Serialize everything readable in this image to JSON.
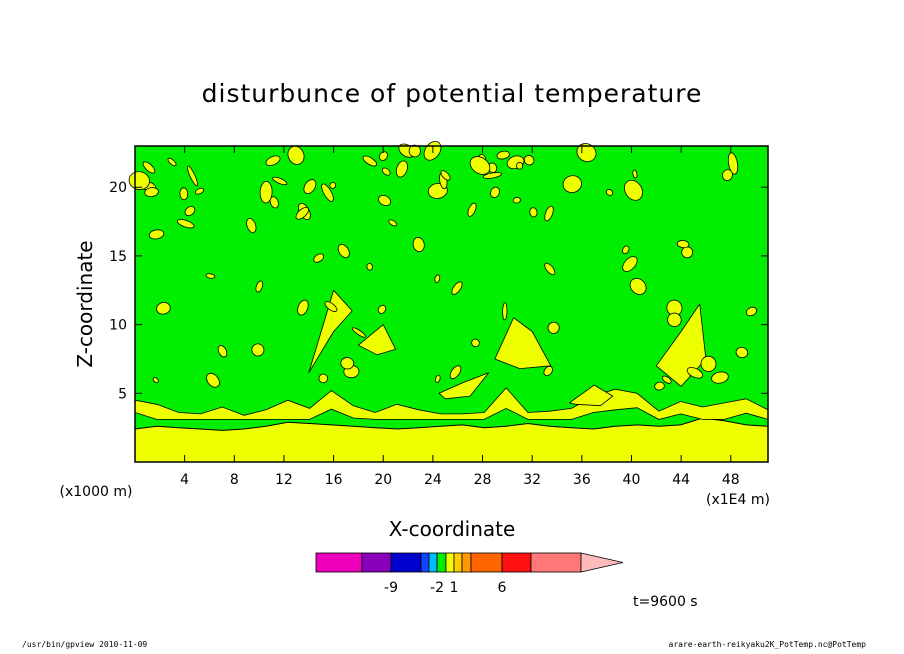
{
  "chart_data": {
    "type": "heatmap",
    "title": "disturbunce of potential temperature",
    "xlabel": "X-coordinate",
    "ylabel": "Z-coordinate",
    "x_unit": "(x1E4 m)",
    "y_unit": "(x1000 m)",
    "xlim": [
      0,
      51
    ],
    "ylim": [
      0,
      23
    ],
    "x_ticks": [
      "4",
      "8",
      "12",
      "16",
      "20",
      "24",
      "28",
      "32",
      "36",
      "40",
      "44",
      "48"
    ],
    "y_ticks": [
      "5",
      "10",
      "15",
      "20"
    ],
    "fill_colors": {
      "background": "#00ee00",
      "anomaly": "#eeff00"
    },
    "surface_layer_top": [
      2.4,
      2.6,
      2.5,
      2.4,
      2.3,
      2.4,
      2.6,
      2.9,
      2.8,
      2.7,
      2.6,
      2.5,
      2.4,
      2.5,
      2.6,
      2.7,
      2.5,
      2.6,
      2.8,
      2.6,
      2.5,
      2.4,
      2.6,
      2.7,
      2.6,
      2.7,
      3.2,
      3.0,
      2.7,
      2.6
    ],
    "lower_cloud_band": [
      4.5,
      4.2,
      3.6,
      3.5,
      4.0,
      3.4,
      3.8,
      4.5,
      3.9,
      5.2,
      4.1,
      3.6,
      4.2,
      3.8,
      3.5,
      3.5,
      3.6,
      5.4,
      3.6,
      3.7,
      3.9,
      4.8,
      5.3,
      5.0,
      3.7,
      4.4,
      4.0,
      4.3,
      4.6,
      3.8
    ],
    "plumes": [
      {
        "x": [
          14,
          16,
          17.5,
          16,
          14.5
        ],
        "z": [
          6.5,
          9.5,
          11,
          12.5,
          8.0
        ]
      },
      {
        "x": [
          24.5,
          26.5,
          28.5,
          27,
          25
        ],
        "z": [
          5.0,
          5.8,
          6.5,
          4.8,
          4.6
        ]
      },
      {
        "x": [
          29,
          30.5,
          32,
          33.5,
          31
        ],
        "z": [
          7.5,
          10.5,
          9.5,
          7.0,
          6.8
        ]
      },
      {
        "x": [
          42,
          44,
          45.5,
          46,
          44
        ],
        "z": [
          7.0,
          9.5,
          11.5,
          7.5,
          5.5
        ]
      },
      {
        "x": [
          35,
          37,
          38.5,
          37.5,
          35.5
        ],
        "z": [
          4.3,
          5.6,
          4.8,
          4.1,
          4.2
        ]
      },
      {
        "x": [
          18,
          20,
          21,
          19.5
        ],
        "z": [
          8.5,
          10.0,
          8.2,
          7.8
        ]
      }
    ],
    "colorbar": {
      "colors": [
        "#ee00bb",
        "#8800bb",
        "#0000cc",
        "#1144ff",
        "#00bbff",
        "#00ee00",
        "#eeff00",
        "#ffcc00",
        "#ff9900",
        "#ff6600",
        "#ff1111",
        "#ff7777",
        "#ffbbbb"
      ],
      "labels": [
        "-9",
        "-2",
        "1",
        "6"
      ]
    }
  },
  "time_label": "t=9600 s",
  "footer_left": "/usr/bin/gpview  2010-11-09",
  "footer_right": "arare-earth-reikyaku2K_PotTemp.nc@PotTemp"
}
